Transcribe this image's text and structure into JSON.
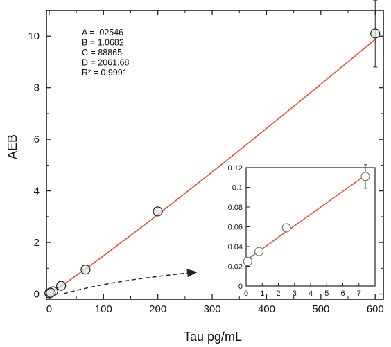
{
  "chart_data": [
    {
      "type": "scatter",
      "xlabel": "Tau pg/mL",
      "ylabel": "AEB",
      "xlim": [
        -5,
        615
      ],
      "ylim": [
        -0.2,
        11.0
      ],
      "xticks": [
        0,
        100,
        200,
        300,
        400,
        500,
        600
      ],
      "yticks": [
        0,
        2,
        4,
        6,
        8,
        10
      ],
      "grid": false,
      "series": [
        {
          "marker": "open-circle",
          "x": [
            0.8,
            2.5,
            7.4,
            22,
            67,
            200,
            600
          ],
          "y": [
            0.035,
            0.058,
            0.11,
            0.32,
            0.95,
            3.2,
            10.1
          ],
          "error": [
            0,
            0,
            0,
            0,
            0,
            0,
            1.3
          ]
        }
      ],
      "fit": {
        "model": "4PL",
        "color": "#e8502a",
        "params": [
          {
            "label": "A = .02546"
          },
          {
            "label": "B = 1.0682"
          },
          {
            "label": "C = 88865"
          },
          {
            "label": "D = 2061.68"
          },
          {
            "label": "R² = 0.9991"
          }
        ],
        "A": 0.02546,
        "B": 1.0682,
        "C": 88865,
        "D": 2061.68
      }
    },
    {
      "type": "scatter",
      "inset": true,
      "xlim": [
        0,
        8
      ],
      "ylim": [
        0,
        0.12
      ],
      "xticks": [
        0,
        1,
        2,
        3,
        4,
        5,
        6,
        7
      ],
      "yticks": [
        0,
        0.02,
        0.04,
        0.06,
        0.08,
        0.1,
        0.12
      ],
      "ytick_labels": [
        "0",
        "0.02",
        "0.04",
        "0.06",
        "0.08",
        "0.1",
        "0.12"
      ],
      "series": [
        {
          "marker": "open-circle",
          "x": [
            0.1,
            0.8,
            2.5,
            7.4
          ],
          "y": [
            0.025,
            0.035,
            0.059,
            0.111
          ],
          "error": [
            0,
            0,
            0,
            0.012
          ]
        }
      ]
    }
  ],
  "colors": {
    "fit_line": "#e8502a",
    "axis": "#222222",
    "arrow": "#222222"
  }
}
